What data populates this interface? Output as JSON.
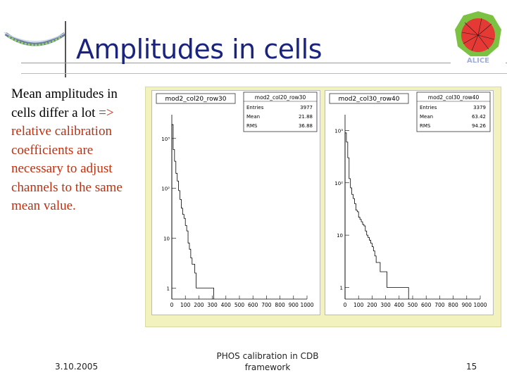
{
  "slide": {
    "title": "Amplitudes in cells",
    "body_black": "Mean amplitudes in cells differ a lot",
    "body_red": "=> relative calibration coefficients are necessary to adjust channels to the same mean value.",
    "footer_date": "3.10.2005",
    "footer_center": "PHOS calibration in CDB framework",
    "page_number": "15"
  },
  "colors": {
    "title": "#1a237e",
    "accent_text": "#c03010",
    "plot_frame": "#f2f2bf",
    "alice_red": "#e53935",
    "alice_green": "#7cc242"
  },
  "icons": [
    "detector-arc-icon",
    "alice-logo-icon"
  ],
  "chart_data": [
    {
      "type": "bar",
      "title": "mod2_col20_row30",
      "stats": {
        "entries_label": "Entries",
        "entries": "3977",
        "mean_label": "Mean",
        "mean": "21.88",
        "rms_label": "RMS",
        "rms": "36.88",
        "box_title": "mod2_col20_row30"
      },
      "x_ticks": [
        "0",
        "100",
        "200",
        "300",
        "400",
        "500",
        "600",
        "700",
        "800",
        "900",
        "1000"
      ],
      "y_ticks": [
        "1",
        "10",
        "10²",
        "10³"
      ],
      "xlim": [
        0,
        1000
      ],
      "ylim": [
        0.6,
        3000
      ],
      "log_y": true,
      "x": [
        0,
        10,
        20,
        30,
        40,
        50,
        60,
        70,
        80,
        90,
        100,
        110,
        120,
        130,
        140,
        150,
        160,
        170,
        180,
        190,
        200,
        210,
        220,
        230,
        240,
        250,
        260,
        270,
        280,
        290,
        300
      ],
      "values": [
        1900,
        600,
        350,
        200,
        140,
        90,
        60,
        40,
        30,
        25,
        18,
        14,
        8,
        6,
        4,
        3,
        3,
        2,
        1,
        1,
        1,
        1,
        1,
        1,
        1,
        1,
        1,
        1,
        1,
        1,
        1
      ]
    },
    {
      "type": "bar",
      "title": "mod2_col30_row40",
      "stats": {
        "entries_label": "Entries",
        "entries": "3379",
        "mean_label": "Mean",
        "mean": "63.42",
        "rms_label": "RMS",
        "rms": "94.26",
        "box_title": "mod2_col30_row40"
      },
      "x_ticks": [
        "0",
        "100",
        "200",
        "300",
        "400",
        "500",
        "600",
        "700",
        "800",
        "900",
        "1000"
      ],
      "y_ticks": [
        "1",
        "10",
        "10²",
        "10³"
      ],
      "xlim": [
        0,
        1000
      ],
      "ylim": [
        0.6,
        2000
      ],
      "log_y": true,
      "x": [
        0,
        10,
        20,
        30,
        40,
        50,
        60,
        70,
        80,
        90,
        100,
        110,
        120,
        130,
        140,
        150,
        160,
        170,
        180,
        190,
        200,
        210,
        220,
        230,
        240,
        250,
        260,
        270,
        280,
        290,
        300,
        310,
        320,
        330,
        340,
        350,
        360,
        370,
        380,
        390,
        400,
        420,
        440,
        460
      ],
      "values": [
        900,
        600,
        300,
        120,
        80,
        60,
        50,
        40,
        30,
        28,
        22,
        20,
        18,
        16,
        15,
        12,
        10,
        9,
        8,
        7,
        6,
        5,
        4,
        3,
        3,
        3,
        2,
        2,
        2,
        2,
        2,
        1,
        1,
        1,
        1,
        1,
        1,
        1,
        1,
        1,
        1,
        1,
        1,
        1
      ]
    }
  ]
}
